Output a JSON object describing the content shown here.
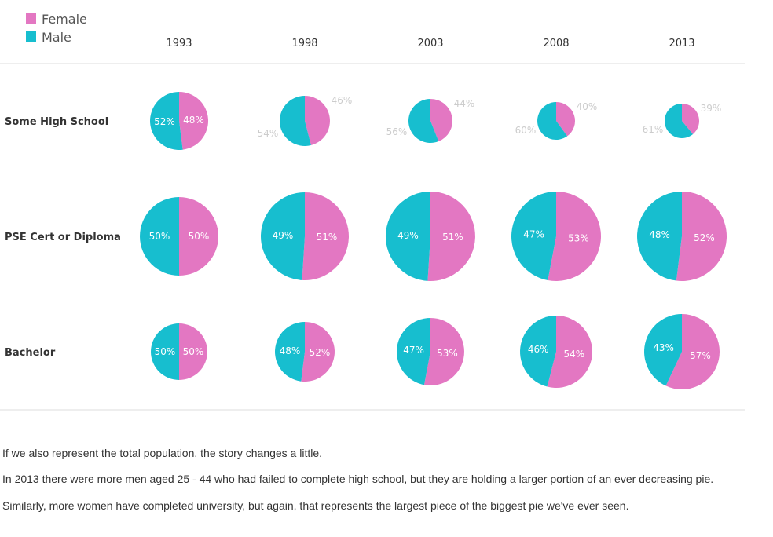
{
  "chart_data": {
    "type": "pie",
    "legend": [
      {
        "name": "Female",
        "color": "#e377c2"
      },
      {
        "name": "Male",
        "color": "#17becf"
      }
    ],
    "legend_position": "top-left",
    "years": [
      "1993",
      "1998",
      "2003",
      "2008",
      "2013"
    ],
    "rows": [
      {
        "label": "Some High School",
        "pies": [
          {
            "year": "1993",
            "female": 48,
            "male": 52,
            "female_label": "48%",
            "male_label": "52%",
            "labels_outside": false
          },
          {
            "year": "1998",
            "female": 46,
            "male": 54,
            "female_label": "46%",
            "male_label": "54%",
            "labels_outside": true
          },
          {
            "year": "2003",
            "female": 44,
            "male": 56,
            "female_label": "44%",
            "male_label": "56%",
            "labels_outside": true
          },
          {
            "year": "2008",
            "female": 40,
            "male": 60,
            "female_label": "40%",
            "male_label": "60%",
            "labels_outside": true
          },
          {
            "year": "2013",
            "female": 39,
            "male": 61,
            "female_label": "39%",
            "male_label": "61%",
            "labels_outside": true
          }
        ]
      },
      {
        "label": "PSE Cert or Diploma",
        "pies": [
          {
            "year": "1993",
            "female": 50,
            "male": 50,
            "female_label": "50%",
            "male_label": "50%",
            "labels_outside": false
          },
          {
            "year": "1998",
            "female": 51,
            "male": 49,
            "female_label": "51%",
            "male_label": "49%",
            "labels_outside": false
          },
          {
            "year": "2003",
            "female": 51,
            "male": 49,
            "female_label": "51%",
            "male_label": "49%",
            "labels_outside": false
          },
          {
            "year": "2008",
            "female": 53,
            "male": 47,
            "female_label": "53%",
            "male_label": "47%",
            "labels_outside": false
          },
          {
            "year": "2013",
            "female": 52,
            "male": 48,
            "female_label": "52%",
            "male_label": "48%",
            "labels_outside": false
          }
        ]
      },
      {
        "label": "Bachelor",
        "pies": [
          {
            "year": "1993",
            "female": 50,
            "male": 50,
            "female_label": "50%",
            "male_label": "50%",
            "labels_outside": false
          },
          {
            "year": "1998",
            "female": 52,
            "male": 48,
            "female_label": "52%",
            "male_label": "48%",
            "labels_outside": false
          },
          {
            "year": "2003",
            "female": 53,
            "male": 47,
            "female_label": "53%",
            "male_label": "47%",
            "labels_outside": false
          },
          {
            "year": "2008",
            "female": 54,
            "male": 46,
            "female_label": "54%",
            "male_label": "46%",
            "labels_outside": false
          },
          {
            "year": "2013",
            "female": 57,
            "male": 43,
            "female_label": "57%",
            "male_label": "43%",
            "labels_outside": false
          }
        ]
      }
    ]
  },
  "captions": {
    "line1": "If we also represent the total population, the story changes a little.",
    "line2": "In 2013 there were more men aged 25 - 44 who had failed to complete high school, but they are holding a larger portion of an ever decreasing pie.",
    "line3": "Similarly, more women have completed university, but again, that represents the largest piece of the biggest pie we've ever seen."
  }
}
